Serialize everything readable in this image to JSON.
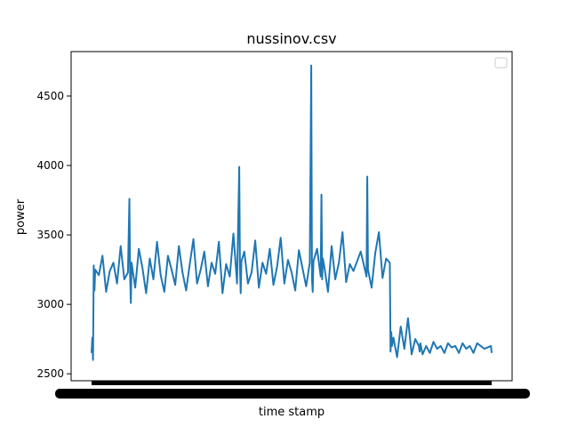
{
  "chart_data": {
    "type": "line",
    "title": "nussinov.csv",
    "xlabel": "time stamp",
    "ylabel": "power",
    "x_tick_labels_legible": false,
    "ylim": [
      2450,
      4820
    ],
    "yticks": [
      2500,
      3000,
      3500,
      4000,
      4500
    ],
    "ytick_labels": [
      "2500",
      "3000",
      "3500",
      "4000",
      "4500"
    ],
    "grid": false,
    "legend": {
      "placement": "top-right",
      "entries": []
    },
    "series": [
      {
        "color": "#1f77b4",
        "x": [
          0,
          1,
          2,
          3,
          4,
          5,
          10,
          15,
          20,
          25,
          30,
          35,
          40,
          45,
          50,
          52,
          53,
          54,
          55,
          60,
          65,
          70,
          75,
          80,
          85,
          90,
          95,
          100,
          105,
          110,
          115,
          120,
          125,
          130,
          135,
          140,
          145,
          150,
          155,
          160,
          165,
          170,
          175,
          180,
          185,
          190,
          195,
          200,
          203,
          204,
          205,
          206,
          210,
          215,
          220,
          225,
          230,
          235,
          240,
          245,
          250,
          255,
          260,
          265,
          270,
          275,
          280,
          285,
          290,
          295,
          300,
          302,
          303,
          304,
          305,
          310,
          315,
          316,
          317,
          318,
          320,
          325,
          330,
          335,
          340,
          345,
          350,
          355,
          360,
          370,
          378,
          379,
          380,
          385,
          390,
          395,
          400,
          405,
          410,
          411,
          412,
          413,
          415,
          420,
          425,
          430,
          435,
          440,
          445,
          450,
          451,
          452,
          455,
          460,
          465,
          470,
          475,
          480,
          485,
          490,
          495,
          500,
          505,
          510,
          515,
          520,
          525,
          530,
          540,
          549,
          550
        ],
        "y": [
          2650,
          2760,
          2600,
          3280,
          3100,
          3250,
          3210,
          3350,
          3090,
          3240,
          3300,
          3150,
          3420,
          3180,
          3230,
          3760,
          3200,
          3010,
          3300,
          3120,
          3400,
          3260,
          3080,
          3330,
          3180,
          3450,
          3210,
          3090,
          3350,
          3250,
          3140,
          3420,
          3230,
          3100,
          3290,
          3470,
          3150,
          3250,
          3380,
          3130,
          3300,
          3220,
          3450,
          3080,
          3290,
          3200,
          3510,
          3150,
          3990,
          3260,
          3080,
          3310,
          3380,
          3150,
          3230,
          3460,
          3120,
          3300,
          3220,
          3400,
          3140,
          3270,
          3480,
          3150,
          3320,
          3230,
          3100,
          3390,
          3260,
          3130,
          3300,
          4720,
          3180,
          3090,
          3310,
          3400,
          3200,
          3790,
          3180,
          3330,
          3270,
          3090,
          3420,
          3180,
          3300,
          3520,
          3160,
          3290,
          3240,
          3380,
          3200,
          3920,
          3250,
          3120,
          3370,
          3520,
          3190,
          3330,
          3300,
          2660,
          2800,
          2700,
          2760,
          2620,
          2840,
          2680,
          2900,
          2640,
          2750,
          2700,
          2660,
          2720,
          2640,
          2700,
          2650,
          2730,
          2680,
          2700,
          2650,
          2720,
          2690,
          2700,
          2650,
          2720,
          2680,
          2700,
          2650,
          2720,
          2680,
          2700,
          2650
        ]
      }
    ]
  }
}
